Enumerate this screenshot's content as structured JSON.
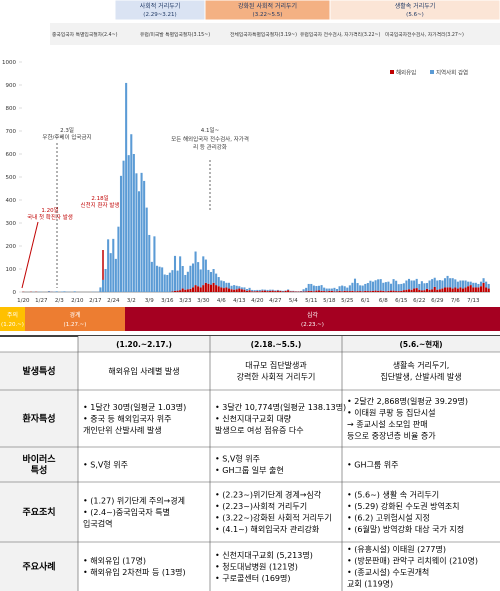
{
  "chart_data": {
    "type": "stacked-bar",
    "phases": [
      {
        "label": "사회적 거리두기",
        "period": "(2.29~3.21)"
      },
      {
        "label": "강화된 사회적 거리두기",
        "period": "(3.22~5.5)"
      },
      {
        "label": "생활속 거리두기",
        "period": "(5.6~)"
      }
    ],
    "entry_measures": [
      "중국입국자 특별입국절차(2.4~)",
      "유럽/미국발 특별입국절차(3.15~)",
      "전체입국자특별입국절차(3.19~)",
      "유럽입국자 전수검사, 자가격리(3.22~)",
      "미국입국자전수검사, 자가격리(3.27~)"
    ],
    "annotations": [
      {
        "date": "1.20일",
        "text": "국내 첫 확진자 발생"
      },
      {
        "date": "2.3일",
        "text": "우한/후베이 입국금지"
      },
      {
        "date": "2.18일",
        "text": "신천지 환자 발생"
      },
      {
        "date": "4.1일~",
        "text": "모든 해외입국자 전수검사, 자가격리 등 관리강화"
      }
    ],
    "alert_levels": [
      {
        "label": "주의",
        "period": "(1.20.~)"
      },
      {
        "label": "경계",
        "period": "(1.27.~)"
      },
      {
        "label": "심각",
        "period": "(2.23.~)"
      }
    ],
    "categories": [
      "1/20",
      null,
      null,
      null,
      null,
      null,
      null,
      "1/27",
      null,
      null,
      null,
      null,
      null,
      null,
      "2/3",
      null,
      null,
      null,
      null,
      null,
      null,
      "2/10",
      null,
      null,
      null,
      null,
      null,
      null,
      "2/17",
      null,
      null,
      null,
      null,
      null,
      null,
      "2/24",
      null,
      null,
      null,
      null,
      null,
      null,
      "3/2",
      null,
      null,
      null,
      null,
      null,
      null,
      "3/9",
      null,
      null,
      null,
      null,
      null,
      null,
      "3/16",
      null,
      null,
      null,
      null,
      null,
      null,
      "3/23",
      null,
      null,
      null,
      null,
      null,
      null,
      "3/30",
      null,
      null,
      null,
      null,
      null,
      null,
      "4/6",
      null,
      null,
      null,
      null,
      null,
      null,
      "4/13",
      null,
      null,
      null,
      null,
      null,
      null,
      "4/20",
      null,
      null,
      null,
      null,
      null,
      null,
      "4/27",
      null,
      null,
      null,
      null,
      null,
      null,
      "5/4",
      null,
      null,
      null,
      null,
      null,
      null,
      "5/11",
      null,
      null,
      null,
      null,
      null,
      null,
      "5/18",
      null,
      null,
      null,
      null,
      null,
      null,
      "5/25",
      null,
      null,
      null,
      null,
      null,
      null,
      "6/1",
      null,
      null,
      null,
      null,
      null,
      null,
      "6/8",
      null,
      null,
      null,
      null,
      null,
      null,
      "6/15",
      null,
      null,
      null,
      null,
      null,
      null,
      "6/22",
      null,
      null,
      null,
      null,
      null,
      null,
      "6/29",
      null,
      null,
      null,
      null,
      null,
      null,
      "7/6",
      null,
      null,
      null,
      null,
      null,
      null,
      "7/13",
      null,
      null,
      null,
      null,
      null,
      null
    ],
    "series": [
      {
        "name": "해외유입",
        "color": "#c00000",
        "values": [
          1,
          0,
          0,
          1,
          0,
          1,
          0,
          0,
          0,
          0,
          1,
          1,
          0,
          0,
          0,
          0,
          0,
          0,
          0,
          0,
          0,
          0,
          0,
          0,
          0,
          0,
          0,
          0,
          0,
          0,
          0,
          0,
          0,
          0,
          0,
          0,
          0,
          0,
          0,
          0,
          0,
          0,
          0,
          0,
          0,
          0,
          0,
          0,
          0,
          0,
          0,
          0,
          0,
          0,
          0,
          0,
          0,
          0,
          2,
          5,
          6,
          8,
          15,
          10,
          12,
          14,
          20,
          30,
          25,
          20,
          30,
          40,
          36,
          32,
          40,
          30,
          25,
          20,
          17,
          20,
          15,
          12,
          10,
          12,
          15,
          12,
          10,
          5,
          8,
          3,
          3,
          4,
          3,
          6,
          6,
          4,
          5,
          6,
          4,
          6,
          5,
          2,
          5,
          8,
          3,
          3,
          2,
          2,
          2,
          2,
          3,
          5,
          5,
          3,
          6,
          7,
          5,
          4,
          3,
          5,
          5,
          3,
          3,
          5,
          3,
          5,
          4,
          4,
          5,
          3,
          4,
          4,
          3,
          5,
          4,
          4,
          5,
          6,
          5,
          6,
          5,
          3,
          5,
          6,
          6,
          4,
          4,
          5,
          8,
          10,
          12,
          10,
          15,
          17,
          10,
          7,
          8,
          14,
          10,
          11,
          22,
          10,
          12,
          15,
          20,
          20,
          20,
          15,
          20,
          15,
          20,
          15,
          20,
          25,
          30,
          20,
          20,
          20,
          25,
          40,
          20,
          15
        ]
      },
      {
        "name": "지역사회 감염",
        "color": "#5b9bd5",
        "values": [
          0,
          0,
          0,
          0,
          1,
          0,
          1,
          1,
          0,
          0,
          3,
          1,
          1,
          3,
          0,
          2,
          3,
          1,
          1,
          0,
          3,
          0,
          0,
          0,
          0,
          0,
          0,
          1,
          1,
          1,
          20,
          53,
          100,
          229,
          169,
          231,
          144,
          284,
          505,
          571,
          909,
          595,
          686,
          600,
          516,
          438,
          518,
          483,
          367,
          248,
          131,
          242,
          114,
          110,
          107,
          76,
          74,
          84,
          93,
          152,
          87,
          147,
          98,
          64,
          76,
          100,
          104,
          146,
          105,
          78,
          125,
          101,
          60,
          55,
          60,
          50,
          40,
          30,
          30,
          20,
          25,
          15,
          20,
          15,
          10,
          8,
          10,
          8,
          10,
          6,
          5,
          5,
          6,
          5,
          4,
          5,
          5,
          4,
          3,
          3,
          2,
          3,
          2,
          3,
          2,
          2,
          1,
          1,
          2,
          10,
          15,
          30,
          30,
          25,
          20,
          20,
          25,
          15,
          12,
          10,
          10,
          15,
          10,
          20,
          25,
          20,
          15,
          25,
          35,
          55,
          35,
          25,
          25,
          30,
          35,
          45,
          40,
          45,
          50,
          50,
          35,
          40,
          40,
          30,
          50,
          45,
          30,
          30,
          30,
          40,
          45,
          40,
          35,
          40,
          25,
          40,
          30,
          25,
          40,
          45,
          40,
          40,
          40,
          35,
          40,
          50,
          40,
          45,
          35,
          30,
          30,
          35,
          30,
          20,
          15,
          20,
          20,
          15,
          20,
          20,
          25,
          20
        ]
      }
    ],
    "ylim": [
      0,
      1000
    ],
    "yticks": [
      0,
      100,
      200,
      300,
      400,
      500,
      600,
      700,
      800,
      900,
      1000
    ],
    "grid": false,
    "legend": "top-right"
  },
  "table": {
    "columns": [
      "(1.20.~2.17.)",
      "(2.18.~5.5.)",
      "(5.6.~현재)"
    ],
    "rows": [
      [
        [
          "발생특성"
        ],
        [
          "해외유입 사례별 발생"
        ],
        [
          "대규모 집단발생과",
          "강력한 사회적 거리두기"
        ],
        [
          "생활속 거리두기,",
          "집단발생, 산발사례 발생"
        ]
      ],
      [
        [
          "환자특성"
        ],
        [
          "• 1달간 30명(일평균 1.03명)",
          "• 중국 등 해외입국자 위주",
          "  개인단위 산발사례 발생"
        ],
        [
          "• 3달간 10,774명(일평균 138.13명)",
          "• 신천지대구교회 대량",
          "  발생으로 여성 점유증 다수"
        ],
        [
          "• 2달간 2,868명(일평균 39.29명)",
          "• 이태원 쿠팡 등 집단시설",
          "  → 종교시설 소모임 판매",
          "  등으로 중장년층 비율 증가"
        ]
      ],
      [
        [
          "바이러스",
          "특성"
        ],
        [
          "• S,V형 위주"
        ],
        [
          "• S,V형 위주",
          "• GH그룹 일부 출현"
        ],
        [
          "• GH그룹 위주"
        ]
      ],
      [
        [
          "주요조치"
        ],
        [
          "• (1.27) 위기단계 주의→경계",
          "• (2.4~)중국입국자 특별",
          "  입국검역"
        ],
        [
          "• (2.23~)위기단계 경계→심각",
          "• (2.23~)사회적 거리두기",
          "• (3.22~)강화된 사회적 거리두기",
          "• (4.1~) 해외입국자 관리강화"
        ],
        [
          "• (5.6~) 생활 속 거리두기",
          "• (5.29) 강화된 수도권 방역조치",
          "• (6.2) 고위험시설 지정",
          "• (6월말) 방역강화 대상 국가 지정"
        ]
      ],
      [
        [
          "주요사례"
        ],
        [
          "• 해외유입 (17명)",
          "• 해외유입 2차전파 등 (13명)"
        ],
        [
          "• 신천지대구교회 (5,213명)",
          "• 청도대남병원 (121명)",
          "• 구로콜센터 (169명)"
        ],
        [
          "• (유흥시설) 이태원 (277명)",
          "• (방문판매) 관악구 리치웨이 (210명)",
          "• (종교시설) 수도권개척",
          "  교회 (119명)"
        ]
      ]
    ]
  }
}
